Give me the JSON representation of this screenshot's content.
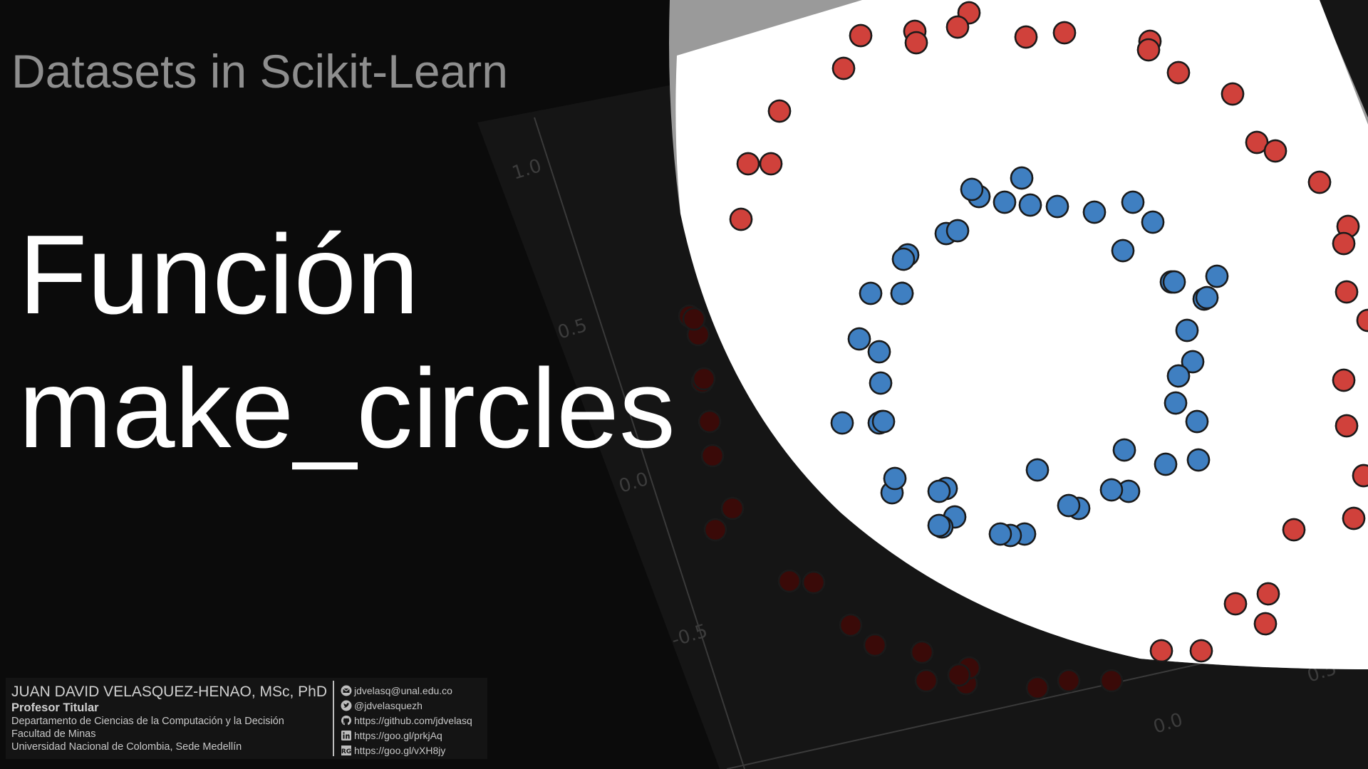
{
  "slide": {
    "subtitle": "Datasets in Scikit-Learn",
    "title_line1": "Función",
    "title_line2": "make_circles"
  },
  "author": {
    "name": "JUAN DAVID VELASQUEZ-HENAO, MSc, PhD",
    "role": "Profesor Titular",
    "department": "Departamento de Ciencias de la Computación y la Decisión",
    "faculty": "Facultad de Minas",
    "university": "Universidad Nacional de Colombia, Sede Medellín"
  },
  "contacts": [
    {
      "icon": "email-icon",
      "text": "jdvelasq@unal.edu.co"
    },
    {
      "icon": "twitter-icon",
      "text": "@jdvelasquezh"
    },
    {
      "icon": "github-icon",
      "text": "https://github.com/jdvelasq"
    },
    {
      "icon": "linkedin-icon",
      "text": "https://goo.gl/prkjAq"
    },
    {
      "icon": "researchgate-icon",
      "text": "https://goo.gl/vXH8jy"
    }
  ],
  "background_plot": {
    "tick_labels": [
      "1.0",
      "0.5",
      "0.0",
      "-0.5",
      "0.0",
      "0.5"
    ],
    "colors": {
      "outer_class": "#d0413b",
      "inner_class": "#3f7fc1",
      "edge": "#1a1a1a"
    }
  }
}
